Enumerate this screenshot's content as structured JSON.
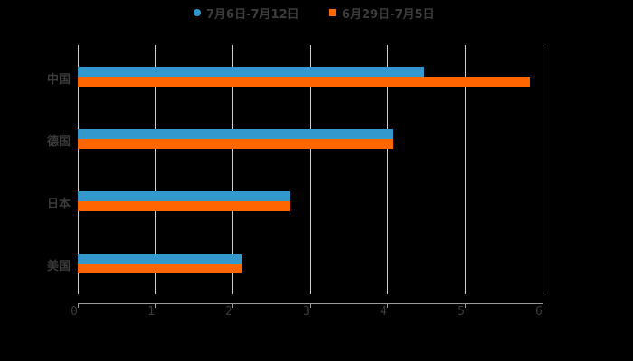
{
  "chart_data": {
    "type": "bar",
    "orientation": "horizontal",
    "title": "",
    "xlabel": "",
    "ylabel": "",
    "categories": [
      "中国",
      "德国",
      "日本",
      "美国"
    ],
    "series": [
      {
        "name": "7月6日-7月12日",
        "color": "#3399cc",
        "values": [
          4.47,
          4.07,
          2.74,
          2.12
        ]
      },
      {
        "name": "6月29日-7月5日",
        "color": "#ff6600",
        "values": [
          5.84,
          4.07,
          2.74,
          2.12
        ]
      }
    ],
    "xlim": [
      0,
      6
    ],
    "xticks": [
      "0",
      "1",
      "2",
      "3",
      "4",
      "5",
      "6"
    ],
    "grid": true,
    "legend_position": "top"
  },
  "legend": {
    "items": [
      {
        "label": "7月6日-7月12日",
        "color": "#3399cc",
        "marker": "circle"
      },
      {
        "label": "6月29日-7月5日",
        "color": "#ff6600",
        "marker": "square"
      }
    ]
  },
  "axis": {
    "ticks": [
      "0",
      "1",
      "2",
      "3",
      "4",
      "5",
      "6"
    ]
  },
  "categories": [
    "中国",
    "德国",
    "日本",
    "美国"
  ]
}
